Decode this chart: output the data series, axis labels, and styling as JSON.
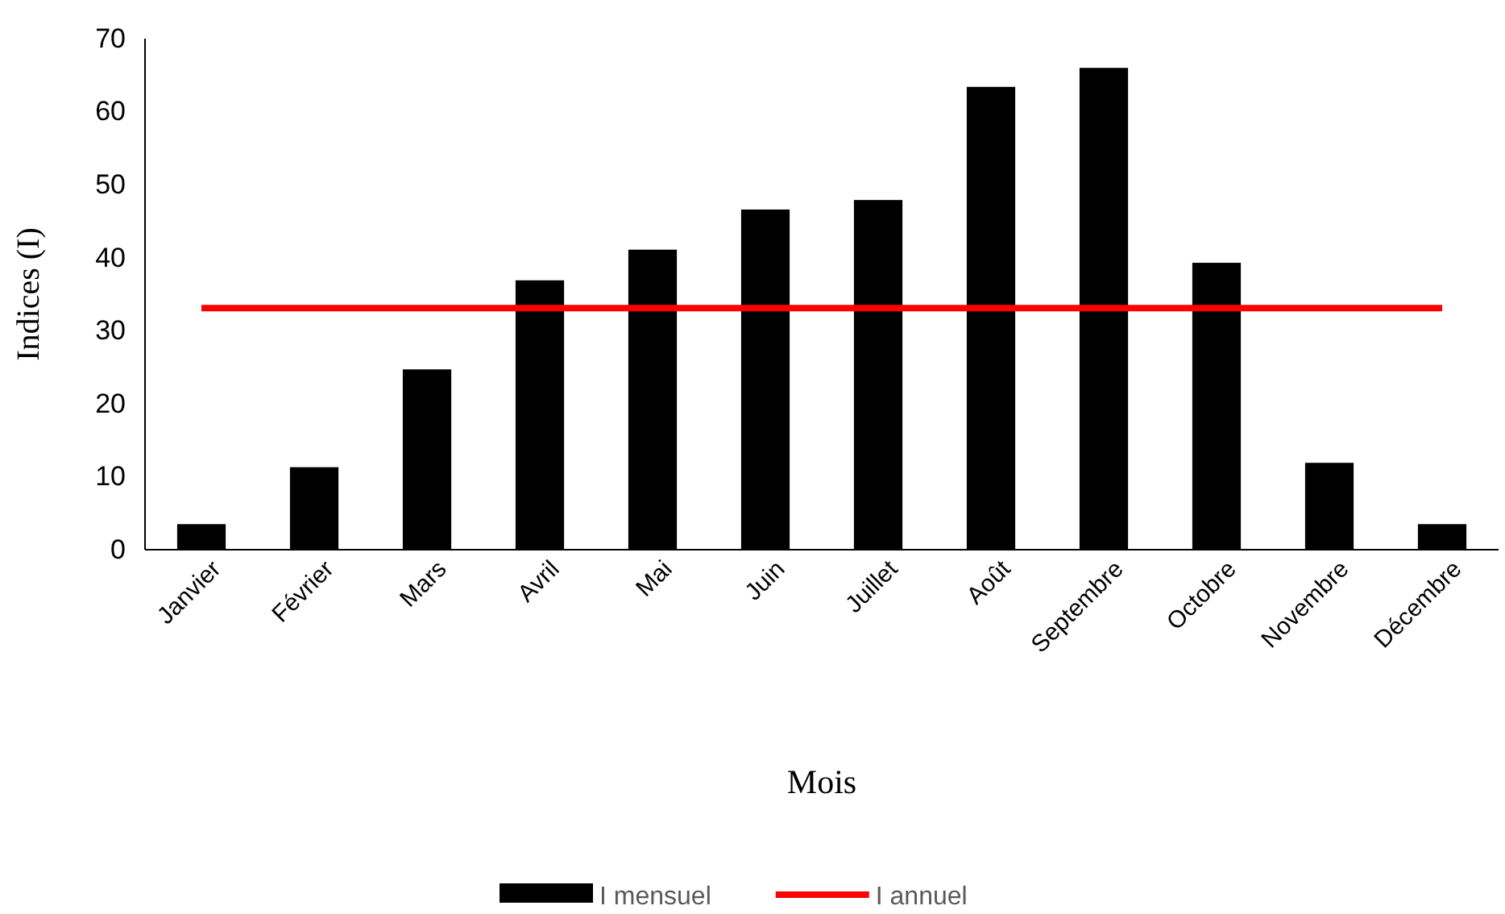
{
  "chart_data": {
    "type": "bar",
    "xlabel": "Mois",
    "ylabel": "Indices (I)",
    "categories": [
      "Janvier",
      "Février",
      "Mars",
      "Avril",
      "Mai",
      "Juin",
      "Juillet",
      "Août",
      "Septembre",
      "Octobre",
      "Novembre",
      "Décembre"
    ],
    "series": [
      {
        "name": "I mensuel",
        "color": "#000000",
        "values": [
          3.5,
          11.3,
          24.7,
          36.9,
          41.1,
          46.6,
          47.9,
          63.4,
          66,
          39.3,
          11.9,
          3.5
        ]
      },
      {
        "name": "I annuel",
        "type": "line",
        "color": "#ff0000",
        "values": [
          33.1,
          33.1,
          33.1,
          33.1,
          33.1,
          33.1,
          33.1,
          33.1,
          33.1,
          33.1,
          33.1,
          33.1
        ]
      }
    ],
    "ylim": [
      0,
      70
    ],
    "yticks": [
      0,
      10,
      20,
      30,
      40,
      50,
      60,
      70
    ],
    "grid": false,
    "legend": "bottom",
    "marker": "none"
  }
}
